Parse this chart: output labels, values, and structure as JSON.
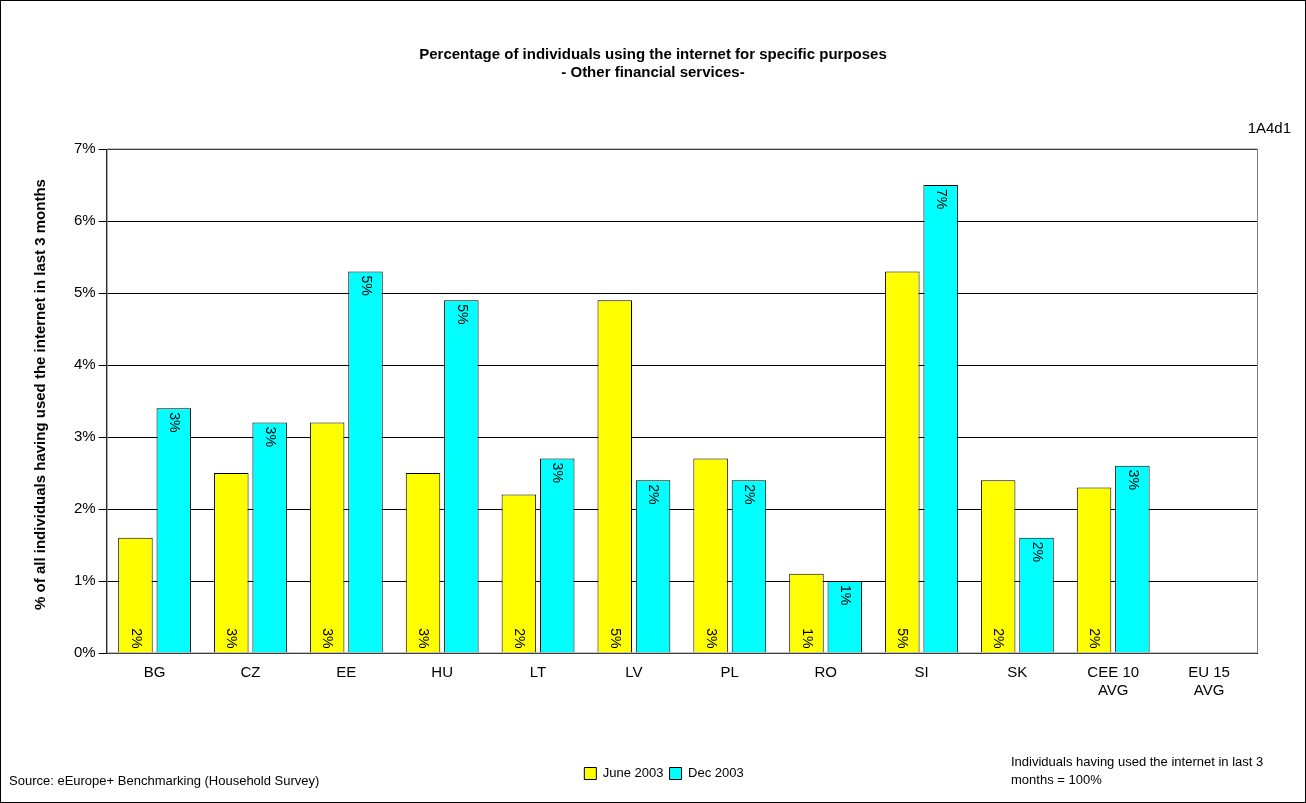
{
  "chart_data": {
    "type": "bar",
    "title": "Percentage of individuals using the internet for specific purposes",
    "subtitle": "- Other financial services-",
    "ylabel": "% of all individuals having used the internet in last 3 months",
    "categories": [
      "BG",
      "CZ",
      "EE",
      "HU",
      "LT",
      "LV",
      "PL",
      "RO",
      "SI",
      "SK",
      "CEE 10 AVG",
      "EU 15 AVG"
    ],
    "series": [
      {
        "name": "June 2003",
        "color": "#ffff00",
        "values": [
          1.6,
          2.5,
          3.2,
          2.5,
          2.2,
          4.9,
          2.7,
          1.1,
          5.3,
          2.4,
          2.3,
          null
        ],
        "value_labels": [
          "2%",
          "3%",
          "3%",
          "3%",
          "2%",
          "5%",
          "3%",
          "1%",
          "5%",
          "2%",
          "2%",
          null
        ]
      },
      {
        "name": "Dec 2003",
        "color": "#00ffff",
        "values": [
          3.4,
          3.2,
          5.3,
          4.9,
          2.7,
          2.4,
          2.4,
          1.0,
          6.5,
          1.6,
          2.6,
          null
        ],
        "value_labels": [
          "3%",
          "3%",
          "5%",
          "5%",
          "3%",
          "2%",
          "2%",
          "1%",
          "7%",
          "2%",
          "3%",
          null
        ]
      }
    ],
    "ylim": [
      0,
      7
    ],
    "yticks": [
      {
        "value": 0,
        "label": "0%"
      },
      {
        "value": 1,
        "label": "1%"
      },
      {
        "value": 2,
        "label": "2%"
      },
      {
        "value": 3,
        "label": "3%"
      },
      {
        "value": 4,
        "label": "4%"
      },
      {
        "value": 5,
        "label": "5%"
      },
      {
        "value": 6,
        "label": "6%"
      },
      {
        "value": 7,
        "label": "7%"
      }
    ],
    "grid": "y",
    "legend": "bottom",
    "annotations": [
      "1A4d1",
      "Source: eEurope+ Benchmarking (Household Survey)",
      "Individuals having used the internet in last 3 months  = 100%"
    ]
  }
}
